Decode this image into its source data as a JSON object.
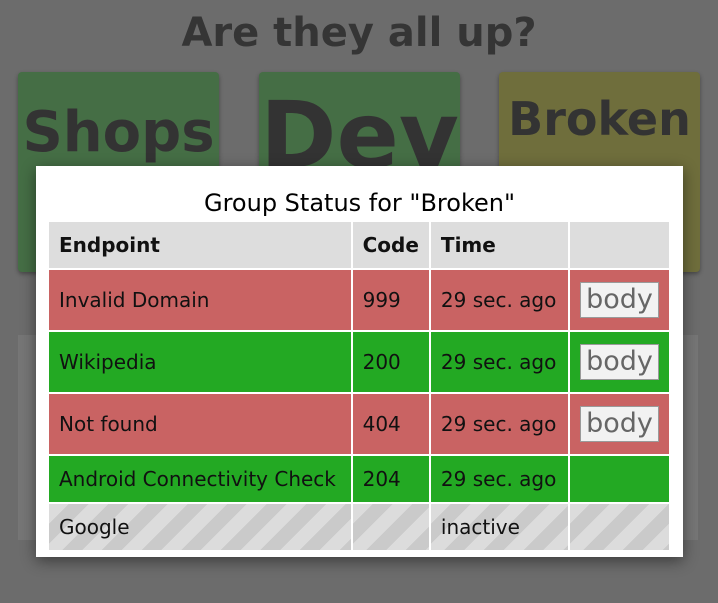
{
  "dashboard": {
    "title": "Are they all up?",
    "groups": [
      {
        "label": "Shops",
        "color": "#456e45"
      },
      {
        "label": "Dev",
        "color": "#456e45"
      },
      {
        "label": "Broken",
        "color": "#6f6e3c"
      }
    ]
  },
  "modal": {
    "title": "Group Status for \"Broken\"",
    "columns": [
      "Endpoint",
      "Code",
      "Time",
      ""
    ],
    "rows": [
      {
        "endpoint": "Invalid Domain",
        "code": "999",
        "time": "29 sec. ago",
        "action": "body",
        "status": "failed"
      },
      {
        "endpoint": "Wikipedia",
        "code": "200",
        "time": "29 sec. ago",
        "action": "body",
        "status": "ok"
      },
      {
        "endpoint": "Not found",
        "code": "404",
        "time": "29 sec. ago",
        "action": "body",
        "status": "failed"
      },
      {
        "endpoint": "Android Connectivity Check",
        "code": "204",
        "time": "29 sec. ago",
        "action": "",
        "status": "ok"
      },
      {
        "endpoint": "Google",
        "code": "",
        "time": "inactive",
        "action": "",
        "status": "inactive"
      }
    ]
  },
  "colors": {
    "ok": "#23a923",
    "failed": "#c96363",
    "inactive": "#dcdcdc",
    "header": "#dddddd"
  }
}
